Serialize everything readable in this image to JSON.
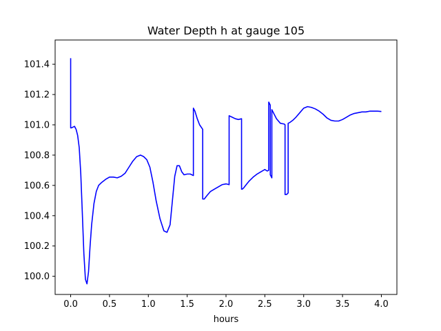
{
  "chart_data": {
    "type": "line",
    "title": "Water Depth h at gauge 105",
    "xlabel": "hours",
    "ylabel": "",
    "xlim": [
      -0.2,
      4.2
    ],
    "ylim": [
      99.88,
      101.56
    ],
    "xticks": [
      0.0,
      0.5,
      1.0,
      1.5,
      2.0,
      2.5,
      3.0,
      3.5,
      4.0
    ],
    "xtick_labels": [
      "0.0",
      "0.5",
      "1.0",
      "1.5",
      "2.0",
      "2.5",
      "3.0",
      "3.5",
      "4.0"
    ],
    "yticks": [
      100.0,
      100.2,
      100.4,
      100.6,
      100.8,
      101.0,
      101.2,
      101.4
    ],
    "ytick_labels": [
      "100.0",
      "100.2",
      "100.4",
      "100.6",
      "100.8",
      "101.0",
      "101.2",
      "101.4"
    ],
    "grid": false,
    "series": [
      {
        "color": "#0000ff",
        "x": [
          0.0,
          0.0,
          0.01,
          0.03,
          0.05,
          0.07,
          0.09,
          0.11,
          0.13,
          0.15,
          0.17,
          0.19,
          0.21,
          0.23,
          0.25,
          0.27,
          0.3,
          0.33,
          0.36,
          0.4,
          0.45,
          0.5,
          0.55,
          0.6,
          0.65,
          0.7,
          0.75,
          0.8,
          0.85,
          0.9,
          0.94,
          0.98,
          1.02,
          1.06,
          1.1,
          1.15,
          1.2,
          1.24,
          1.28,
          1.31,
          1.34,
          1.37,
          1.4,
          1.43,
          1.46,
          1.5,
          1.54,
          1.58,
          1.58,
          1.6,
          1.63,
          1.66,
          1.7,
          1.7,
          1.72,
          1.75,
          1.8,
          1.85,
          1.9,
          1.95,
          2.0,
          2.04,
          2.04,
          2.08,
          2.12,
          2.16,
          2.2,
          2.2,
          2.21,
          2.23,
          2.26,
          2.3,
          2.35,
          2.4,
          2.45,
          2.5,
          2.53,
          2.55,
          2.55,
          2.57,
          2.57,
          2.59,
          2.59,
          2.61,
          2.65,
          2.7,
          2.75,
          2.76,
          2.76,
          2.78,
          2.8,
          2.8,
          2.82,
          2.86,
          2.9,
          2.95,
          3.0,
          3.05,
          3.1,
          3.15,
          3.2,
          3.25,
          3.3,
          3.35,
          3.4,
          3.45,
          3.5,
          3.55,
          3.6,
          3.65,
          3.7,
          3.75,
          3.8,
          3.85,
          3.9,
          3.95,
          4.0
        ],
        "y": [
          101.44,
          100.98,
          100.98,
          100.985,
          100.99,
          100.97,
          100.93,
          100.85,
          100.68,
          100.42,
          100.15,
          99.98,
          99.95,
          100.03,
          100.2,
          100.34,
          100.48,
          100.56,
          100.6,
          100.62,
          100.64,
          100.655,
          100.655,
          100.65,
          100.66,
          100.68,
          100.72,
          100.76,
          100.79,
          100.8,
          100.79,
          100.77,
          100.72,
          100.62,
          100.5,
          100.38,
          100.3,
          100.29,
          100.34,
          100.5,
          100.66,
          100.73,
          100.73,
          100.69,
          100.67,
          100.675,
          100.675,
          100.665,
          101.11,
          101.09,
          101.04,
          101.0,
          100.97,
          100.51,
          100.51,
          100.53,
          100.56,
          100.575,
          100.59,
          100.605,
          100.61,
          100.605,
          101.06,
          101.05,
          101.04,
          101.035,
          101.04,
          100.575,
          100.575,
          100.585,
          100.605,
          100.63,
          100.655,
          100.675,
          100.69,
          100.705,
          100.695,
          100.7,
          101.15,
          101.13,
          100.67,
          100.65,
          101.1,
          101.08,
          101.04,
          101.01,
          101.005,
          101.0,
          100.54,
          100.54,
          100.55,
          101.01,
          101.015,
          101.03,
          101.05,
          101.08,
          101.11,
          101.12,
          101.115,
          101.105,
          101.09,
          101.07,
          101.045,
          101.03,
          101.025,
          101.025,
          101.035,
          101.05,
          101.065,
          101.075,
          101.08,
          101.085,
          101.085,
          101.09,
          101.09,
          101.09,
          101.088
        ]
      }
    ]
  }
}
